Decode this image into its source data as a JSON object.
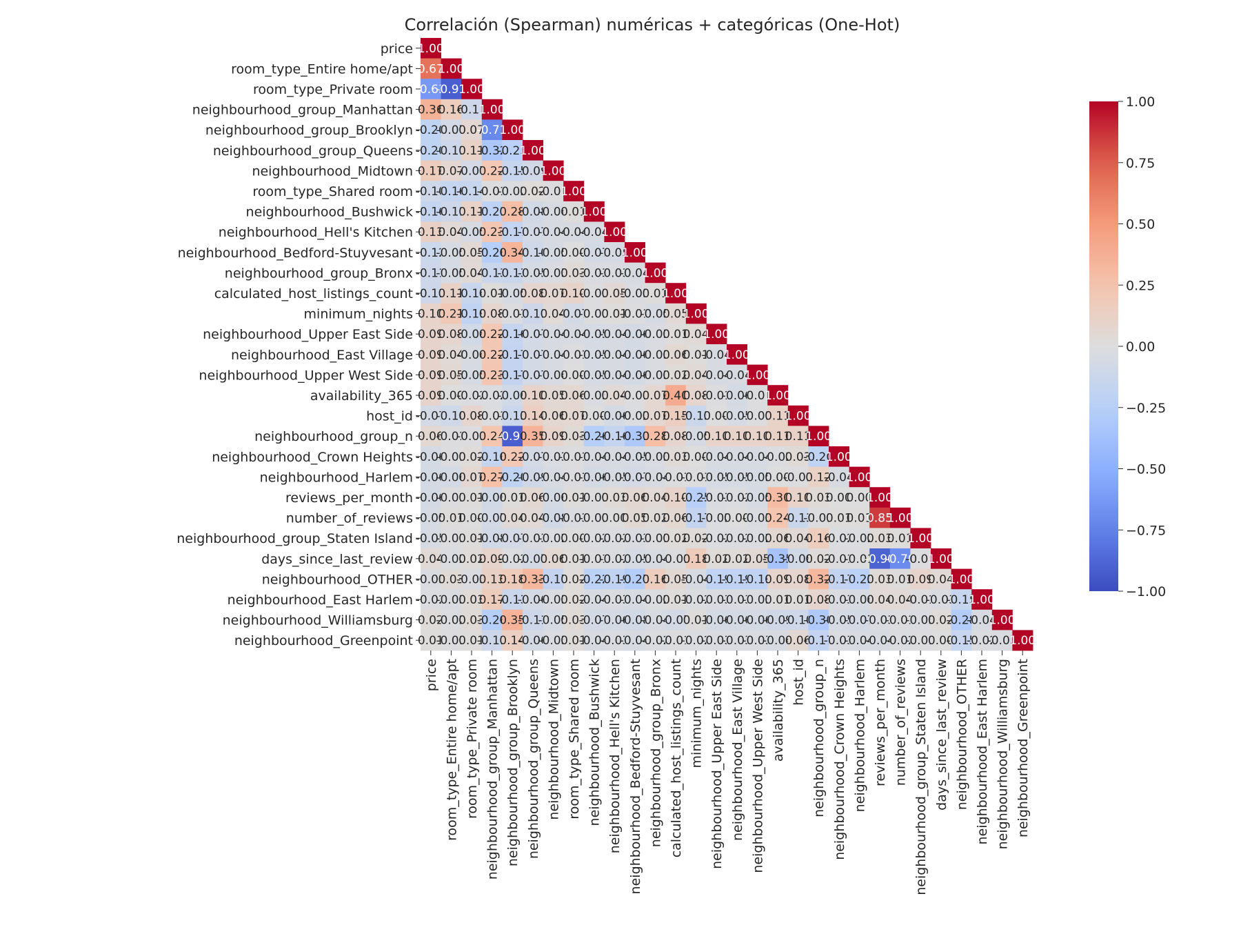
{
  "chart_data": {
    "type": "heatmap",
    "title": "Correlación (Spearman) numéricas + categóricas (One-Hot)",
    "xlabel": "",
    "ylabel": "",
    "mask": "upper-triangle",
    "colormap": "coolwarm",
    "vmin": -1.0,
    "vmax": 1.0,
    "colorbar_ticks": [
      "1.00",
      "0.75",
      "0.50",
      "0.25",
      "0.00",
      "−0.25",
      "−0.50",
      "−0.75",
      "−1.00"
    ],
    "colorbar_tick_values": [
      1.0,
      0.75,
      0.5,
      0.25,
      0.0,
      -0.25,
      -0.5,
      -0.75,
      -1.0
    ],
    "labels": [
      "price",
      "room_type_Entire home/apt",
      "room_type_Private room",
      "neighbourhood_group_Manhattan",
      "neighbourhood_group_Brooklyn",
      "neighbourhood_group_Queens",
      "neighbourhood_Midtown",
      "room_type_Shared room",
      "neighbourhood_Bushwick",
      "neighbourhood_Hell's Kitchen",
      "neighbourhood_Bedford-Stuyvesant",
      "neighbourhood_group_Bronx",
      "calculated_host_listings_count",
      "minimum_nights",
      "neighbourhood_Upper East Side",
      "neighbourhood_East Village",
      "neighbourhood_Upper West Side",
      "availability_365",
      "host_id",
      "neighbourhood_group_n",
      "neighbourhood_Crown Heights",
      "neighbourhood_Harlem",
      "reviews_per_month",
      "number_of_reviews",
      "neighbourhood_group_Staten Island",
      "days_since_last_review",
      "neighbourhood_OTHER",
      "neighbourhood_East Harlem",
      "neighbourhood_Williamsburg",
      "neighbourhood_Greenpoint"
    ],
    "values": [
      [
        1.0
      ],
      [
        0.67,
        1.0
      ],
      [
        -0.63,
        -0.91,
        1.0
      ],
      [
        0.36,
        0.16,
        -0.11,
        1.0
      ],
      [
        -0.2,
        -0.07,
        0.07,
        -0.71,
        1.0
      ],
      [
        -0.2,
        -0.11,
        0.11,
        -0.32,
        -0.23,
        1.0
      ],
      [
        0.17,
        0.07,
        -0.07,
        0.22,
        -0.15,
        -0.09,
        1.0
      ],
      [
        -0.1,
        -0.16,
        -0.14,
        -0.01,
        -0.02,
        0.02,
        -0.01,
        1.0
      ],
      [
        -0.16,
        -0.11,
        0.11,
        -0.21,
        0.28,
        -0.08,
        -0.04,
        0.01,
        1.0
      ],
      [
        0.13,
        0.04,
        -0.05,
        0.23,
        -0.17,
        -0.07,
        -0.04,
        -0.04,
        -0.04,
        1.0
      ],
      [
        -0.12,
        -0.05,
        0.05,
        -0.26,
        0.34,
        -0.1,
        -0.05,
        0.0,
        -0.07,
        -0.05,
        1.0
      ],
      [
        -0.11,
        -0.05,
        0.04,
        -0.13,
        -0.13,
        -0.05,
        -0.03,
        0.03,
        -0.03,
        -0.03,
        -0.04,
        1.0
      ],
      [
        -0.11,
        0.11,
        -0.14,
        0.01,
        -0.05,
        0.08,
        0.07,
        0.1,
        -0.01,
        0.05,
        -0.03,
        0.01,
        1.0
      ],
      [
        0.1,
        0.21,
        -0.19,
        0.08,
        -0.01,
        -0.11,
        0.04,
        -0.07,
        -0.01,
        0.01,
        -0.01,
        -0.05,
        0.05,
        1.0
      ],
      [
        0.09,
        0.08,
        -0.08,
        0.22,
        -0.16,
        -0.07,
        -0.04,
        -0.04,
        -0.05,
        -0.04,
        -0.06,
        -0.03,
        0.01,
        0.04,
        1.0
      ],
      [
        0.09,
        0.04,
        -0.04,
        0.22,
        -0.17,
        -0.07,
        -0.04,
        -0.01,
        -0.05,
        -0.04,
        -0.06,
        -0.03,
        0.06,
        0.01,
        -0.04,
        1.0
      ],
      [
        0.09,
        0.05,
        -0.05,
        0.23,
        -0.17,
        -0.07,
        -0.04,
        -0.0,
        -0.05,
        -0.04,
        -0.06,
        -0.03,
        0.02,
        0.04,
        -0.04,
        -0.04,
        1.0
      ],
      [
        0.09,
        -0.0,
        -0.02,
        -0.02,
        -0.08,
        0.1,
        0.05,
        0.06,
        -0.03,
        0.04,
        -0.01,
        0.07,
        0.4,
        0.08,
        -0.01,
        -0.06,
        -0.01,
        1.0
      ],
      [
        -0.07,
        -0.1,
        0.08,
        -0.01,
        -0.13,
        0.14,
        0.06,
        0.07,
        -0.0,
        -0.06,
        -0.02,
        0.07,
        0.15,
        -0.13,
        0.0,
        -0.05,
        -0.01,
        0.11,
        1.0
      ],
      [
        0.06,
        -0.01,
        -0.01,
        0.24,
        -0.91,
        0.35,
        0.09,
        0.03,
        -0.26,
        -0.16,
        -0.31,
        0.28,
        0.08,
        -0.05,
        0.1,
        0.1,
        0.1,
        0.11,
        0.11,
        1.0
      ],
      [
        -0.06,
        -0.01,
        0.02,
        -0.16,
        0.22,
        -0.07,
        -0.03,
        -0.01,
        -0.04,
        -0.04,
        -0.05,
        -0.03,
        0.03,
        0.0,
        -0.04,
        -0.04,
        -0.04,
        -0.02,
        0.03,
        -0.2,
        1.0
      ],
      [
        -0.06,
        -0.06,
        0.07,
        0.27,
        -0.2,
        -0.09,
        -0.04,
        -0.01,
        -0.06,
        -0.05,
        -0.07,
        -0.04,
        -0.01,
        -0.01,
        -0.05,
        -0.05,
        -0.05,
        0.0,
        -0.01,
        0.12,
        -0.04,
        1.0
      ],
      [
        -0.06,
        -0.01,
        0.01,
        -0.08,
        0.01,
        0.06,
        -0.06,
        0.01,
        -0.01,
        0.03,
        0.06,
        0.04,
        0.1,
        -0.25,
        -0.03,
        -0.02,
        -0.05,
        0.3,
        0.1,
        0.03,
        -0.0,
        0.0,
        1.0
      ],
      [
        -0.05,
        0.01,
        -0.0,
        -0.07,
        0.04,
        0.04,
        -0.08,
        -0.03,
        -0.01,
        -0.0,
        0.05,
        0.02,
        0.06,
        -0.17,
        -0.02,
        -0.0,
        -0.03,
        0.24,
        -0.13,
        -0.01,
        0.01,
        0.01,
        0.85,
        1.0
      ],
      [
        -0.05,
        -0.01,
        0.01,
        -0.08,
        -0.07,
        -0.03,
        -0.02,
        0.0,
        -0.02,
        -0.02,
        -0.03,
        -0.01,
        0.02,
        0.02,
        -0.02,
        -0.02,
        -0.02,
        0.06,
        0.04,
        0.16,
        -0.02,
        -0.02,
        0.03,
        0.01,
        1.0
      ],
      [
        0.04,
        -0.02,
        0.02,
        0.09,
        -0.02,
        -0.07,
        0.06,
        0.01,
        -0.01,
        -0.02,
        -0.05,
        -0.04,
        -0.01,
        0.18,
        0.02,
        0.02,
        0.05,
        -0.35,
        -0.08,
        0.02,
        -0.01,
        -0.01,
        -0.9,
        -0.7,
        -0.01,
        1.0
      ],
      [
        -0.03,
        0.03,
        -0.03,
        0.13,
        0.18,
        0.33,
        -0.17,
        0.02,
        -0.22,
        -0.19,
        -0.27,
        0.16,
        0.05,
        -0.04,
        -0.19,
        -0.19,
        -0.19,
        0.09,
        0.08,
        0.32,
        -0.17,
        -0.23,
        0.03,
        0.01,
        0.09,
        0.04,
        1.0
      ],
      [
        -0.02,
        -0.03,
        0.03,
        0.17,
        -0.13,
        -0.06,
        -0.03,
        0.02,
        -0.04,
        -0.03,
        -0.04,
        -0.02,
        0.01,
        -0.02,
        -0.03,
        -0.03,
        -0.03,
        0.01,
        0.01,
        0.08,
        -0.03,
        -0.04,
        0.04,
        0.04,
        -0.01,
        -0.03,
        -0.15,
        1.0
      ],
      [
        0.02,
        -0.02,
        0.03,
        -0.26,
        0.35,
        -0.11,
        -0.05,
        0.03,
        -0.07,
        -0.06,
        -0.08,
        -0.04,
        -0.07,
        0.01,
        -0.06,
        -0.06,
        -0.06,
        -0.09,
        -0.1,
        -0.3,
        -0.05,
        -0.07,
        -0.03,
        -0.01,
        -0.03,
        0.02,
        -0.28,
        -0.04,
        1.0
      ],
      [
        0.01,
        -0.01,
        0.01,
        -0.11,
        0.14,
        -0.06,
        -0.03,
        0.01,
        -0.04,
        -0.03,
        -0.04,
        -0.02,
        -0.01,
        -0.02,
        -0.03,
        -0.03,
        -0.03,
        -0.04,
        0.06,
        -0.17,
        -0.03,
        -0.04,
        -0.04,
        -0.02,
        -0.01,
        0.0,
        -0.15,
        -0.02,
        -0.03,
        1.0
      ]
    ]
  }
}
